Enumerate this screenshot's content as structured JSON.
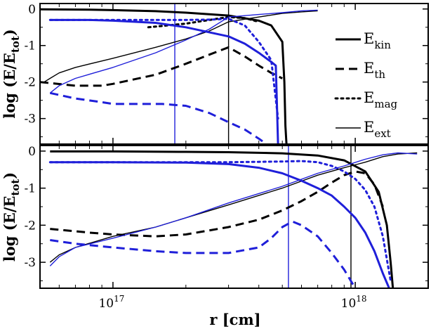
{
  "chart_data": [
    {
      "type": "line",
      "panel": "top",
      "xscale": "log",
      "ylabel": "log (E/E",
      "ylabel_sub": "tot",
      "ylabel_close": ")",
      "xlim": [
        5e+16,
        2e+18
      ],
      "ylim": [
        -3.7,
        0.15
      ],
      "yticks": [
        0,
        -1,
        -2,
        -3
      ],
      "ytick_labels": [
        "0",
        "-1",
        "-2",
        "-3"
      ],
      "grid": false,
      "vlines": [
        {
          "x": 1.8e+17,
          "color": "#1f1fd9"
        },
        {
          "x": 3e+17,
          "color": "#000000"
        }
      ],
      "series": [
        {
          "style": "solid-thick",
          "color": "#000000",
          "x": [
            5e+16,
            8e+16,
            1e+17,
            1.5e+17,
            2e+17,
            3e+17,
            4e+17,
            4.5e+17,
            5e+17,
            5.1e+17,
            5.15e+17,
            5.2e+17
          ],
          "y": [
            -0.01,
            -0.02,
            -0.03,
            -0.06,
            -0.1,
            -0.18,
            -0.32,
            -0.45,
            -0.9,
            -2.0,
            -3.2,
            -3.7
          ]
        },
        {
          "style": "dashed",
          "color": "#000000",
          "x": [
            5e+16,
            7e+16,
            9e+16,
            1e+17,
            1.5e+17,
            2e+17,
            2.5e+17,
            3e+17,
            3.5e+17,
            4e+17,
            4.5e+17,
            5e+17
          ],
          "y": [
            -2.0,
            -2.1,
            -2.1,
            -2.05,
            -1.8,
            -1.5,
            -1.25,
            -1.05,
            -1.3,
            -1.55,
            -1.75,
            -1.9
          ]
        },
        {
          "style": "dotted",
          "color": "#000000",
          "x": [
            1.4e+17,
            2e+17,
            2.5e+17,
            3e+17,
            3.5e+17,
            4e+17
          ],
          "y": [
            -0.5,
            -0.4,
            -0.3,
            -0.22,
            -0.25,
            -0.35
          ]
        },
        {
          "style": "solid-thin",
          "color": "#000000",
          "x": [
            5.2e+16,
            5.5e+16,
            6e+16,
            7e+16,
            1e+17,
            1.5e+17,
            2e+17,
            2.5e+17,
            3e+17,
            3.5e+17,
            4e+17,
            5e+17,
            6e+17,
            7e+17
          ],
          "y": [
            -2.0,
            -1.9,
            -1.75,
            -1.6,
            -1.35,
            -1.05,
            -0.82,
            -0.6,
            -0.35,
            -0.28,
            -0.22,
            -0.12,
            -0.08,
            -0.05
          ]
        },
        {
          "style": "solid-thick",
          "color": "#1f1fd9",
          "x": [
            5.5e+16,
            8e+16,
            1e+17,
            1.5e+17,
            2e+17,
            3e+17,
            3.5e+17,
            4e+17,
            4.5e+17,
            4.7e+17,
            4.75e+17,
            4.8e+17
          ],
          "y": [
            -0.3,
            -0.3,
            -0.32,
            -0.38,
            -0.5,
            -0.75,
            -0.95,
            -1.2,
            -1.45,
            -1.55,
            -2.6,
            -3.7
          ]
        },
        {
          "style": "dashed",
          "color": "#1f1fd9",
          "x": [
            5.5e+16,
            7e+16,
            9e+16,
            1e+17,
            1.3e+17,
            1.6e+17,
            2e+17,
            2.5e+17,
            3e+17,
            3.5e+17,
            4e+17,
            4.3e+17
          ],
          "y": [
            -2.3,
            -2.45,
            -2.55,
            -2.6,
            -2.6,
            -2.6,
            -2.65,
            -2.85,
            -3.1,
            -3.3,
            -3.55,
            -3.7
          ]
        },
        {
          "style": "dotted",
          "color": "#1f1fd9",
          "x": [
            5.5e+16,
            1e+17,
            1.5e+17,
            2e+17,
            2.5e+17,
            3e+17,
            3.5e+17,
            4e+17,
            4.5e+17,
            4.8e+17
          ],
          "y": [
            -0.3,
            -0.3,
            -0.3,
            -0.3,
            -0.29,
            -0.27,
            -0.45,
            -0.9,
            -1.4,
            -3.0
          ]
        },
        {
          "style": "solid-thin",
          "color": "#1f1fd9",
          "x": [
            5.5e+16,
            6e+16,
            7e+16,
            1e+17,
            1.5e+17,
            2e+17,
            2.5e+17,
            3e+17,
            4e+17,
            5e+17,
            6e+17,
            7e+17
          ],
          "y": [
            -2.3,
            -2.1,
            -1.9,
            -1.6,
            -1.2,
            -0.85,
            -0.55,
            -0.22,
            -0.15,
            -0.1,
            -0.05,
            -0.03
          ]
        }
      ]
    },
    {
      "type": "line",
      "panel": "bottom",
      "xscale": "log",
      "xlabel": "r [cm]",
      "ylabel": "log (E/E",
      "ylabel_sub": "tot",
      "ylabel_close": ")",
      "xlim": [
        5e+16,
        2e+18
      ],
      "ylim": [
        -3.7,
        0.15
      ],
      "yticks": [
        0,
        -1,
        -2,
        -3
      ],
      "ytick_labels": [
        "0",
        "-1",
        "-2",
        "-3"
      ],
      "xticks": [
        1e+17,
        1e+18
      ],
      "xtick_labels": [
        {
          "base": "10",
          "exp": "17"
        },
        {
          "base": "10",
          "exp": "18"
        }
      ],
      "grid": false,
      "vlines": [
        {
          "x": 5.3e+17,
          "color": "#1f1fd9"
        },
        {
          "x": 9.6e+17,
          "color": "#000000"
        }
      ],
      "series": [
        {
          "style": "solid-thick",
          "color": "#000000",
          "x": [
            5.5e+16,
            1e+17,
            2e+17,
            3e+17,
            5e+17,
            7e+17,
            9e+17,
            1.1e+18,
            1.25e+18,
            1.35e+18,
            1.4e+18,
            1.43e+18
          ],
          "y": [
            -0.01,
            -0.01,
            -0.02,
            -0.03,
            -0.06,
            -0.12,
            -0.25,
            -0.55,
            -1.1,
            -2.0,
            -3.0,
            -3.7
          ]
        },
        {
          "style": "dashed",
          "color": "#000000",
          "x": [
            5.5e+16,
            8e+16,
            1e+17,
            1.5e+17,
            2e+17,
            3e+17,
            4e+17,
            5e+17,
            6e+17,
            7e+17,
            8e+17,
            9e+17,
            1e+18,
            1.1e+18,
            1.2e+18,
            1.3e+18
          ],
          "y": [
            -2.1,
            -2.2,
            -2.25,
            -2.3,
            -2.25,
            -2.05,
            -1.85,
            -1.6,
            -1.35,
            -1.1,
            -0.85,
            -0.65,
            -0.55,
            -0.6,
            -0.9,
            -1.5
          ]
        },
        {
          "style": "dotted",
          "color": "#1f1fd9",
          "x": [
            5.5e+16,
            1e+17,
            2e+17,
            3e+17,
            4e+17,
            5e+17,
            6e+17,
            7e+17,
            8e+17,
            9e+17,
            1e+18,
            1.1e+18,
            1.2e+18,
            1.3e+18,
            1.4e+18
          ],
          "y": [
            -0.3,
            -0.3,
            -0.3,
            -0.3,
            -0.29,
            -0.28,
            -0.27,
            -0.3,
            -0.4,
            -0.55,
            -0.75,
            -1.05,
            -1.5,
            -2.3,
            -3.5
          ]
        },
        {
          "style": "solid-thin",
          "color": "#000000",
          "x": [
            5.5e+16,
            6e+16,
            7e+16,
            1e+17,
            1.5e+17,
            2e+17,
            3e+17,
            5e+17,
            7e+17,
            9e+17,
            1.1e+18,
            1.3e+18,
            1.5e+18,
            1.8e+18
          ],
          "y": [
            -3.0,
            -2.8,
            -2.6,
            -2.3,
            -2.05,
            -1.8,
            -1.45,
            -1.0,
            -0.65,
            -0.45,
            -0.3,
            -0.15,
            -0.08,
            -0.05
          ]
        },
        {
          "style": "solid-thick",
          "color": "#1f1fd9",
          "x": [
            5.5e+16,
            1e+17,
            2e+17,
            3e+17,
            4e+17,
            5e+17,
            6e+17,
            7e+17,
            8e+17,
            9e+17,
            1e+18,
            1.1e+18,
            1.2e+18,
            1.3e+18,
            1.38e+18
          ],
          "y": [
            -0.3,
            -0.3,
            -0.31,
            -0.35,
            -0.45,
            -0.6,
            -0.8,
            -1.0,
            -1.2,
            -1.5,
            -1.8,
            -2.2,
            -2.7,
            -3.3,
            -3.7
          ]
        },
        {
          "style": "dashed",
          "color": "#1f1fd9",
          "x": [
            5.5e+16,
            7e+16,
            1e+17,
            1.5e+17,
            2e+17,
            3e+17,
            4e+17,
            4.5e+17,
            5e+17,
            5.5e+17,
            6e+17,
            7e+17,
            8e+17,
            9e+17,
            1e+18
          ],
          "y": [
            -2.4,
            -2.5,
            -2.6,
            -2.7,
            -2.75,
            -2.75,
            -2.6,
            -2.35,
            -2.05,
            -1.9,
            -2.0,
            -2.3,
            -2.75,
            -3.2,
            -3.7
          ]
        },
        {
          "style": "solid-thin",
          "color": "#1f1fd9",
          "x": [
            5.5e+16,
            6e+16,
            7e+16,
            1e+17,
            1.5e+17,
            2e+17,
            3e+17,
            5e+17,
            7e+17,
            9e+17,
            1.1e+18,
            1.3e+18,
            1.5e+18,
            1.8e+18
          ],
          "y": [
            -3.1,
            -2.85,
            -2.6,
            -2.35,
            -2.05,
            -1.8,
            -1.4,
            -0.95,
            -0.6,
            -0.4,
            -0.22,
            -0.1,
            -0.05,
            -0.08
          ]
        }
      ]
    }
  ],
  "legend": {
    "placement": "right",
    "entries": [
      {
        "base": "E",
        "sub": "kin",
        "style": "solid-thick"
      },
      {
        "base": "E",
        "sub": "th",
        "style": "dashed"
      },
      {
        "base": "E",
        "sub": "mag",
        "style": "dotted"
      },
      {
        "base": "E",
        "sub": "ext",
        "style": "solid-thin"
      }
    ]
  }
}
